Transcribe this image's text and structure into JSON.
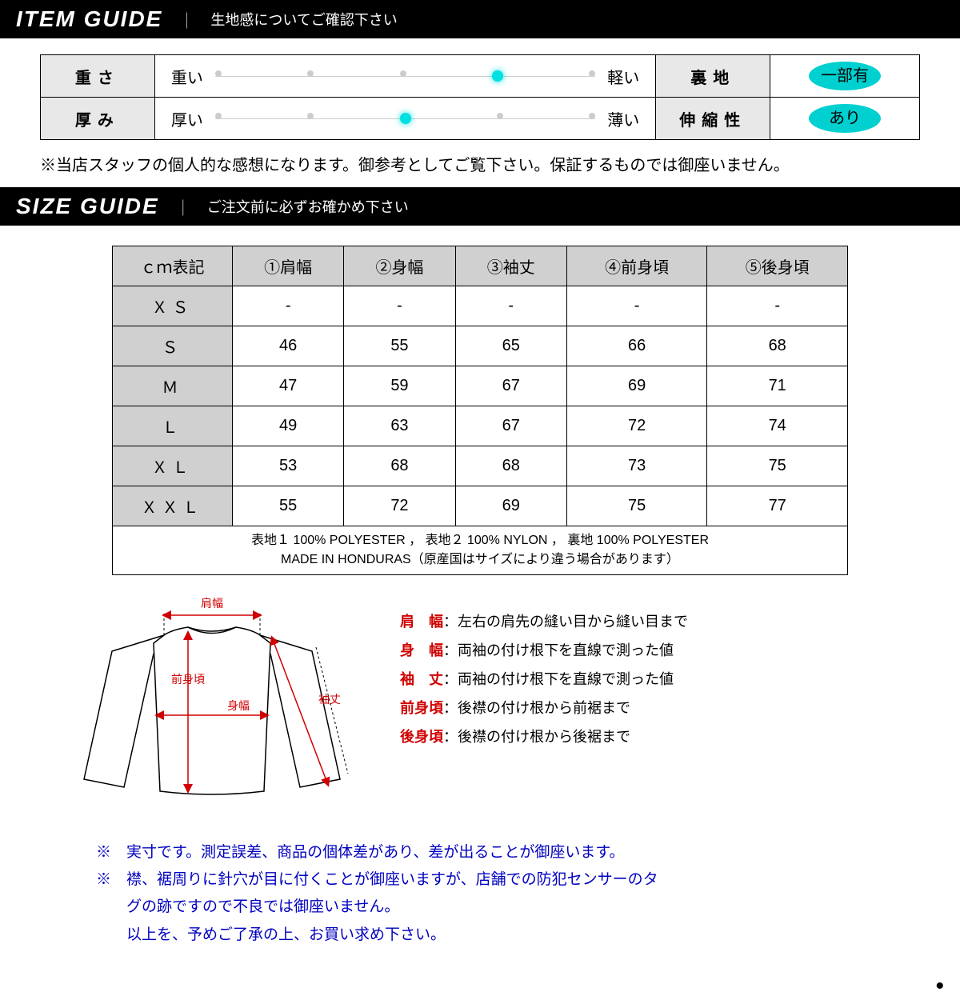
{
  "item_guide": {
    "title": "ITEM GUIDE",
    "subtitle": "生地感についてご確認下さい",
    "rows": [
      {
        "label": "重さ",
        "scale_left": "重い",
        "scale_right": "軽い",
        "scale_total": 5,
        "scale_active": 3,
        "prop_label": "裏地",
        "prop_value": "一部有"
      },
      {
        "label": "厚み",
        "scale_left": "厚い",
        "scale_right": "薄い",
        "scale_total": 5,
        "scale_active": 2,
        "prop_label": "伸縮性",
        "prop_value": "あり"
      }
    ],
    "note": "※当店スタッフの個人的な感想になります。御参考としてご覧下さい。保証するものでは御座いません。"
  },
  "size_guide": {
    "title": "SIZE GUIDE",
    "subtitle": "ご注文前に必ずお確かめ下さい",
    "columns": [
      "ｃｍ表記",
      "①肩幅",
      "②身幅",
      "③袖丈",
      "④前身頃",
      "⑤後身頃"
    ],
    "rows": [
      {
        "label": "ＸＳ",
        "values": [
          "-",
          "-",
          "-",
          "-",
          "-"
        ]
      },
      {
        "label": "Ｓ",
        "values": [
          "46",
          "55",
          "65",
          "66",
          "68"
        ]
      },
      {
        "label": "Ｍ",
        "values": [
          "47",
          "59",
          "67",
          "69",
          "71"
        ]
      },
      {
        "label": "Ｌ",
        "values": [
          "49",
          "63",
          "67",
          "72",
          "74"
        ]
      },
      {
        "label": "ＸＬ",
        "values": [
          "53",
          "68",
          "68",
          "73",
          "75"
        ]
      },
      {
        "label": "ＸＸＬ",
        "values": [
          "55",
          "72",
          "69",
          "75",
          "77"
        ]
      }
    ],
    "material_line1": "表地１ 100% POLYESTER ， 表地２ 100% NYLON ， 裏地 100% POLYESTER",
    "material_line2": "MADE IN HONDURAS（原産国はサイズにより違う場合があります）"
  },
  "diagram": {
    "labels": {
      "kata": "肩幅",
      "maemi": "前身頃",
      "mi": "身幅",
      "sode": "袖丈"
    },
    "colors": {
      "label": "#d00000",
      "arrow": "#d00000",
      "outline": "#000000",
      "dash": "#000000"
    }
  },
  "legend": [
    {
      "label": "肩　幅",
      "desc": "：左右の肩先の縫い目から縫い目まで"
    },
    {
      "label": "身　幅",
      "desc": "：両袖の付け根下を直線で測った値"
    },
    {
      "label": "袖　丈",
      "desc": "：両袖の付け根下を直線で測った値"
    },
    {
      "label": "前身頃",
      "desc": "：後襟の付け根から前裾まで"
    },
    {
      "label": "後身頃",
      "desc": "：後襟の付け根から後裾まで"
    }
  ],
  "footer": {
    "note1": "※　実寸です。測定誤差、商品の個体差があり、差が出ることが御座います。",
    "note2a": "※　襟、裾周りに針穴が目に付くことが御座いますが、店舗での防犯センサーのタ",
    "note2b": "グの跡ですので不良では御座いません。",
    "note3": "以上を、予めご了承の上、お買い求め下さい。"
  }
}
